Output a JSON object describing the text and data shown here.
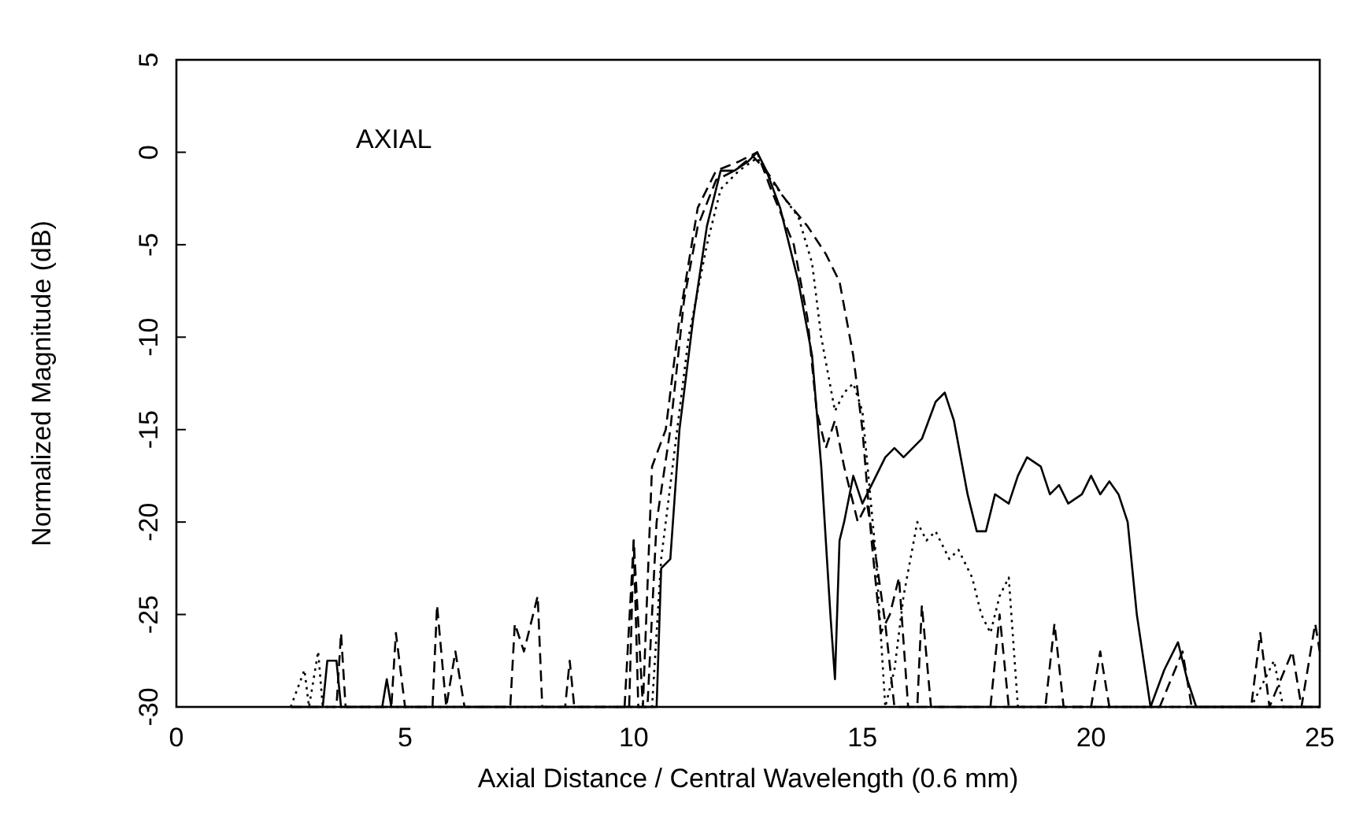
{
  "chart_data": {
    "type": "line",
    "xlabel": "Axial Distance / Central Wavelength (0.6 mm)",
    "ylabel": "Normalized Magnitude (dB)",
    "annotations": [
      "AXIAL"
    ],
    "xlim": [
      0,
      25
    ],
    "ylim": [
      -30,
      5
    ],
    "xticks": [
      0,
      5,
      10,
      15,
      20,
      25
    ],
    "yticks": [
      -30,
      -25,
      -20,
      -15,
      -10,
      -5,
      0,
      5
    ],
    "grid": false,
    "series": [
      {
        "color": "#000000",
        "line_style": "solid",
        "x": [
          2.5,
          3.2,
          3.3,
          3.5,
          3.6,
          4.5,
          4.6,
          4.7,
          10.5,
          10.6,
          10.8,
          11,
          11.3,
          11.6,
          11.9,
          12.2,
          12.5,
          12.7,
          12.9,
          13.2,
          13.6,
          13.9,
          14.1,
          14.3,
          14.4,
          14.5,
          14.6,
          14.8,
          15,
          15.2,
          15.5,
          15.7,
          15.9,
          16.3,
          16.6,
          16.8,
          17,
          17.3,
          17.5,
          17.7,
          17.9,
          18.2,
          18.4,
          18.6,
          18.9,
          19.1,
          19.3,
          19.5,
          19.8,
          20,
          20.2,
          20.4,
          20.6,
          20.8,
          21,
          21.3,
          21.6,
          21.9,
          22.1,
          22.3,
          25
        ],
        "values": [
          -30,
          -30,
          -27.5,
          -27.5,
          -30,
          -30,
          -28.5,
          -30,
          -30,
          -22.5,
          -22,
          -15,
          -9,
          -4,
          -1,
          -1,
          -0.5,
          0,
          -1,
          -3,
          -7,
          -11,
          -17,
          -25,
          -28.5,
          -21,
          -20,
          -17.5,
          -19,
          -18,
          -16.5,
          -16,
          -16.5,
          -15.5,
          -13.5,
          -13,
          -14.5,
          -18.5,
          -20.5,
          -20.5,
          -18.5,
          -19,
          -17.5,
          -16.5,
          -17,
          -18.5,
          -18,
          -19,
          -18.5,
          -17.5,
          -18.5,
          -17.8,
          -18.5,
          -20,
          -25,
          -30,
          -28,
          -26.5,
          -28.5,
          -30,
          -30
        ]
      },
      {
        "color": "#000000",
        "line_style": "dashed",
        "x": [
          2.5,
          3.5,
          3.6,
          3.7,
          4.7,
          4.8,
          5,
          5.6,
          5.7,
          5.9,
          6.1,
          6.3,
          7.3,
          7.4,
          7.6,
          7.9,
          8,
          8.5,
          8.6,
          8.7,
          9.9,
          10,
          10.1,
          10.3,
          10.5,
          10.8,
          11.1,
          11.4,
          11.8,
          12.2,
          12.6,
          12.9,
          13.3,
          13.8,
          14.2,
          14.5,
          14.8,
          15,
          15.2,
          15.4,
          15.6,
          15.8,
          16,
          16.2,
          16.3,
          16.5,
          17.8,
          18,
          18.2,
          19,
          19.2,
          19.4,
          20,
          20.2,
          20.4,
          23.5,
          23.7,
          23.9,
          24.4,
          24.6,
          24.9,
          25
        ],
        "values": [
          -30,
          -30,
          -26,
          -30,
          -30,
          -26,
          -30,
          -30,
          -24.5,
          -30,
          -27,
          -30,
          -30,
          -25.5,
          -27,
          -24,
          -30,
          -30,
          -27.5,
          -30,
          -30,
          -21,
          -30,
          -30,
          -20,
          -15,
          -8,
          -4,
          -1.5,
          -1,
          -0.2,
          -1,
          -2.5,
          -4,
          -5.5,
          -7,
          -11,
          -15,
          -21,
          -26,
          -25,
          -23,
          -30,
          -30,
          -24.5,
          -30,
          -30,
          -25,
          -30,
          -30,
          -25.5,
          -30,
          -30,
          -27,
          -30,
          -30,
          -26,
          -30,
          -27,
          -30,
          -25.5,
          -27
        ]
      },
      {
        "color": "#000000",
        "line_style": "dashed",
        "x": [
          9.8,
          10,
          10.2,
          10.4,
          10.7,
          11,
          11.4,
          11.8,
          12.3,
          12.7,
          13,
          13.5,
          13.8,
          14,
          14.2,
          14.4,
          14.6,
          14.9,
          15.1,
          15.3,
          15.5,
          15.7,
          21.5,
          22,
          22.2,
          25
        ],
        "values": [
          -30,
          -21,
          -30,
          -17,
          -15,
          -9,
          -3,
          -1,
          -0.5,
          0,
          -2,
          -5,
          -9,
          -14,
          -16,
          -14.5,
          -17,
          -20,
          -19,
          -22,
          -25.5,
          -30,
          -30,
          -27,
          -30,
          -30
        ]
      },
      {
        "color": "#000000",
        "line_style": "dotted",
        "x": [
          2.5,
          2.8,
          2.9,
          3.1,
          3.2,
          10.4,
          10.6,
          10.9,
          11.2,
          11.6,
          11.9,
          12.3,
          12.7,
          13,
          13.3,
          13.6,
          13.9,
          14.1,
          14.4,
          14.6,
          14.8,
          15,
          15.3,
          15.5,
          15.7,
          15.9,
          16.2,
          16.4,
          16.6,
          16.9,
          17.1,
          17.4,
          17.6,
          17.8,
          18,
          18.2,
          18.4,
          23.5,
          24,
          24.2,
          25
        ],
        "values": [
          -30,
          -28,
          -30,
          -27,
          -30,
          -30,
          -22,
          -16,
          -10,
          -5,
          -2,
          -1,
          -0.3,
          -1.5,
          -2.5,
          -3.5,
          -6,
          -10,
          -14,
          -13,
          -12.5,
          -14,
          -22,
          -30,
          -28,
          -24,
          -20,
          -21,
          -20.5,
          -22,
          -21.5,
          -23,
          -25,
          -26,
          -24,
          -23,
          -30,
          -30,
          -27.5,
          -30,
          -30
        ]
      }
    ]
  }
}
